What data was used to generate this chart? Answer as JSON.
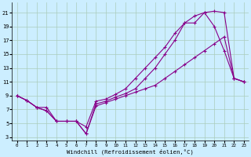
{
  "xlabel": "Windchill (Refroidissement éolien,°C)",
  "background_color": "#cceeff",
  "grid_color": "#aaccbb",
  "line_color": "#880088",
  "xlim": [
    -0.5,
    23.5
  ],
  "ylim": [
    2.5,
    22.5
  ],
  "xticks": [
    0,
    1,
    2,
    3,
    4,
    5,
    6,
    7,
    8,
    9,
    10,
    11,
    12,
    13,
    14,
    15,
    16,
    17,
    18,
    19,
    20,
    21,
    22,
    23
  ],
  "yticks": [
    3,
    5,
    7,
    9,
    11,
    13,
    15,
    17,
    19,
    21
  ],
  "line1_x": [
    0,
    1,
    2,
    3,
    4,
    5,
    6,
    7,
    8,
    9,
    10,
    11,
    12,
    13,
    14,
    15,
    16,
    17,
    18,
    19,
    20,
    21,
    22,
    23
  ],
  "line1_y": [
    9.0,
    8.3,
    7.3,
    6.8,
    5.3,
    5.3,
    5.3,
    3.5,
    7.8,
    8.2,
    8.8,
    9.3,
    10.0,
    11.5,
    13.0,
    15.0,
    17.0,
    19.5,
    19.5,
    21.0,
    19.0,
    15.5,
    11.5,
    11.0
  ],
  "line2_x": [
    0,
    1,
    2,
    3,
    4,
    5,
    6,
    7,
    8,
    9,
    10,
    11,
    12,
    13,
    14,
    15,
    16,
    17,
    18,
    19,
    20,
    21,
    22,
    23
  ],
  "line2_y": [
    9.0,
    8.3,
    7.3,
    7.3,
    5.3,
    5.3,
    5.3,
    4.5,
    8.2,
    8.5,
    9.2,
    10.0,
    11.5,
    13.0,
    14.5,
    16.0,
    18.0,
    19.5,
    20.5,
    21.0,
    21.2,
    21.0,
    11.5,
    11.0
  ],
  "line3_x": [
    0,
    1,
    2,
    3,
    4,
    5,
    6,
    7,
    8,
    9,
    10,
    11,
    12,
    13,
    14,
    15,
    16,
    17,
    18,
    19,
    20,
    21,
    22,
    23
  ],
  "line3_y": [
    9.0,
    8.3,
    7.3,
    6.8,
    5.3,
    5.3,
    5.3,
    3.5,
    7.5,
    8.0,
    8.5,
    9.0,
    9.5,
    10.0,
    10.5,
    11.5,
    12.5,
    13.5,
    14.5,
    15.5,
    16.5,
    17.5,
    11.5,
    11.0
  ]
}
